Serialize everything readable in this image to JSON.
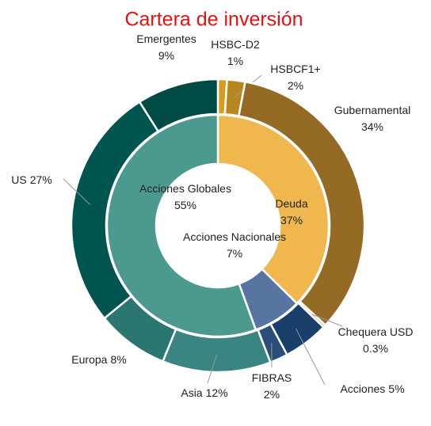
{
  "chart_data": {
    "type": "donut",
    "title": "Cartera de inversión",
    "series": [
      {
        "categories": [
          "Deuda",
          "Acciones Nacionales",
          "Acciones Globales"
        ],
        "values": [
          37,
          7,
          55
        ],
        "value_labels": [
          "37%",
          "7%",
          "55%"
        ],
        "colors": [
          "#efb74e",
          "#5874a0",
          "#4c9990"
        ]
      },
      {
        "categories": [
          "HSBC-D2",
          "HSBCF1+",
          "Gubernamental",
          "Chequera USD",
          "Acciones",
          "FIBRAS",
          "Asia",
          "Europa",
          "US",
          "Emergentes"
        ],
        "values": [
          1,
          2,
          34,
          0.3,
          5,
          2,
          12,
          8,
          27,
          9
        ],
        "value_labels": [
          "1%",
          "2%",
          "34%",
          "0.3%",
          "5%",
          "2%",
          "12%",
          "8%",
          "27%",
          "9%"
        ],
        "colors": [
          "#d99b1c",
          "#b8861e",
          "#946a25",
          "#c9b48c",
          "#1b3f6b",
          "#2a4e7a",
          "#3a8582",
          "#2b7670",
          "#005550",
          "#004a45"
        ]
      }
    ]
  }
}
